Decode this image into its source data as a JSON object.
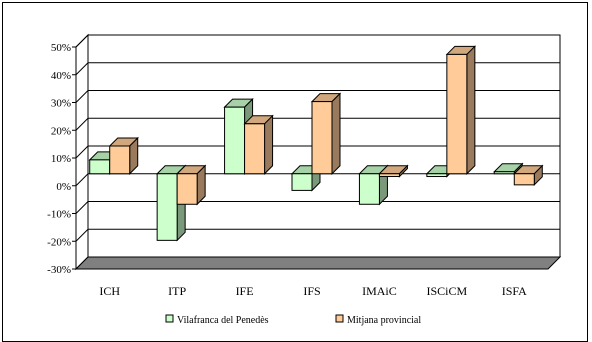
{
  "chart_data": {
    "type": "bar",
    "categories": [
      "ICH",
      "ITP",
      "IFE",
      "IFS",
      "IMAiC",
      "ISCiCM",
      "ISFA"
    ],
    "series": [
      {
        "name": "Vilafranca del Penedès",
        "values": [
          5,
          -24,
          24,
          -6,
          -11,
          -1,
          0
        ],
        "color": "#ccffcc"
      },
      {
        "name": "Mitjana provincial",
        "values": [
          10,
          -11,
          18,
          26,
          -1,
          43,
          -4
        ],
        "color": "#ffcc99"
      }
    ],
    "ylim": [
      -30,
      50
    ],
    "yticks": [
      "50%",
      "40%",
      "30%",
      "20%",
      "10%",
      "0%",
      "-10%",
      "-20%",
      "-30%"
    ],
    "ytick_values": [
      50,
      40,
      30,
      20,
      10,
      0,
      -10,
      -20,
      -30
    ],
    "grid": true,
    "legend": "bottom",
    "title": "",
    "xlabel": "",
    "ylabel": ""
  }
}
